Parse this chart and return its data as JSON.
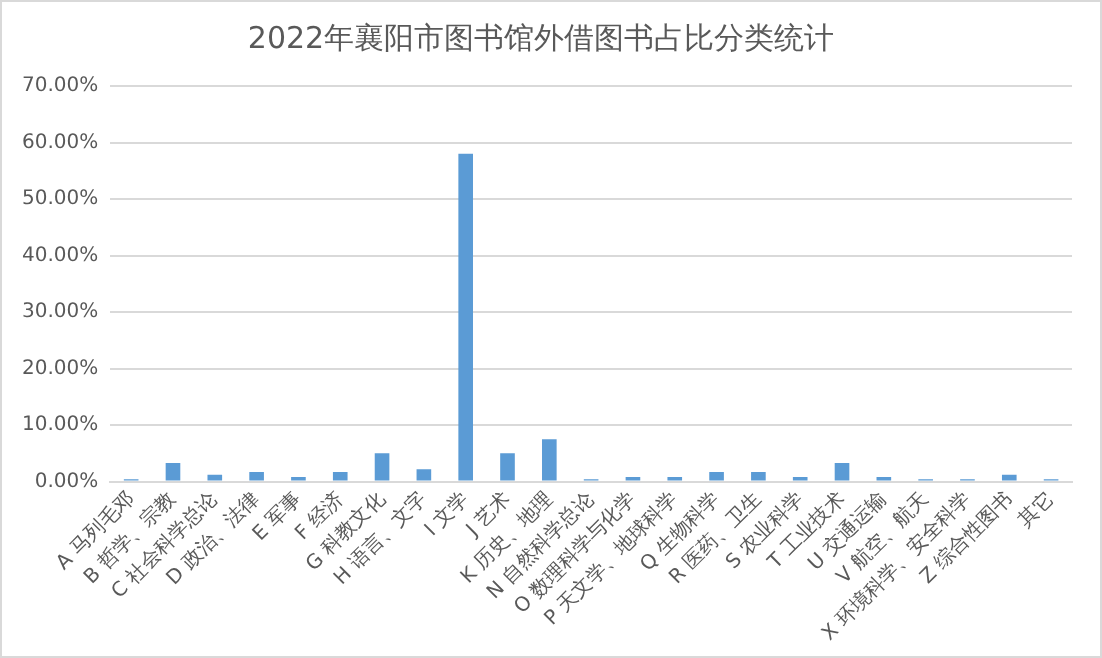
{
  "chart_data": {
    "type": "bar",
    "title": "2022年襄阳市图书馆外借图书占比分类统计",
    "categories": [
      "A 马列毛邓",
      "B 哲学、宗教",
      "C 社会科学总论",
      "D 政治、法律",
      "E 军事",
      "F 经济",
      "G 科教文化",
      "H 语言、文字",
      "I 文学",
      "J 艺术",
      "K 历史、地理",
      "N 自然科学总论",
      "O 数理科学与化学",
      "P 天文学、地球科学",
      "Q 生物科学",
      "R 医药、卫生",
      "S 农业科学",
      "T 工业技术",
      "U 交通运输",
      "V 航空、航天",
      "X 环境科学、安全科学",
      "Z 综合性图书",
      "其它"
    ],
    "values": [
      0.4,
      3.3,
      1.2,
      1.7,
      0.8,
      1.7,
      5.0,
      2.2,
      58.0,
      5.0,
      7.5,
      0.4,
      0.8,
      0.8,
      1.7,
      1.7,
      0.8,
      3.3,
      0.8,
      0.4,
      0.4,
      1.2,
      0.4
    ],
    "color": "#5b9bd5",
    "ylim": [
      0,
      70
    ],
    "yticks": [
      {
        "value": 0,
        "label": "0.00%"
      },
      {
        "value": 10,
        "label": "10.00%"
      },
      {
        "value": 20,
        "label": "20.00%"
      },
      {
        "value": 30,
        "label": "30.00%"
      },
      {
        "value": 40,
        "label": "40.00%"
      },
      {
        "value": 50,
        "label": "50.00%"
      },
      {
        "value": 60,
        "label": "60.00%"
      },
      {
        "value": 70,
        "label": "70.00%"
      }
    ],
    "grid": "y",
    "legend": false
  }
}
